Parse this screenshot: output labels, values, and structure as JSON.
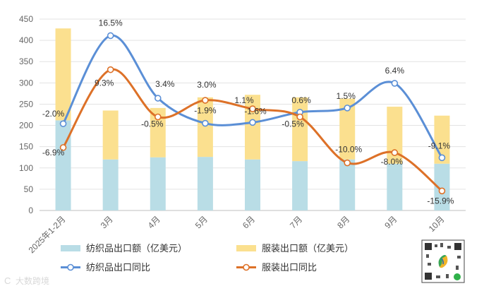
{
  "chart_data": {
    "type": "bar",
    "categories": [
      "2025年1-2月",
      "3月",
      "4月",
      "5月",
      "6月",
      "7月",
      "8月",
      "9月",
      "10月"
    ],
    "ylim": [
      0,
      450
    ],
    "yticks": [
      "0",
      "50",
      "100",
      "150",
      "200",
      "250",
      "300",
      "350",
      "400",
      "450"
    ],
    "grid": true,
    "legend_position": "bottom",
    "series": [
      {
        "name": "纺织品出口额（亿美元）",
        "kind": "stacked-bar-bottom",
        "color": "#b9dde6",
        "values": [
          212,
          120,
          125,
          126,
          120,
          116,
          120,
          110,
          110
        ]
      },
      {
        "name": "服装出口额（亿美元）",
        "kind": "stacked-bar-top",
        "color": "#fbe08f",
        "values": [
          216,
          115,
          116,
          140,
          152,
          150,
          143,
          134,
          113
        ]
      },
      {
        "name": "纺织品出口同比",
        "kind": "line",
        "color": "#5b8fd6",
        "plotted_positions": [
          204,
          411,
          264,
          205,
          207,
          231,
          241,
          299,
          124
        ],
        "labels": [
          "-2.0%",
          "16.5%",
          "3.4%",
          "-1.9%",
          "-1.6%",
          "0.6%",
          "1.5%",
          "6.4%",
          "-9.1%"
        ]
      },
      {
        "name": "服装出口同比",
        "kind": "line",
        "color": "#dd7128",
        "plotted_positions": [
          148,
          331,
          220,
          259,
          239,
          220,
          112,
          136,
          46
        ],
        "labels": [
          "-6.9%",
          "9.3%",
          "-0.5%",
          "3.0%",
          "1.1%",
          "-0.5%",
          "-10.0%",
          "-8.0%",
          "-15.9%"
        ]
      }
    ],
    "legend": [
      {
        "label": "纺织品出口额（亿美元）",
        "shape": "bar",
        "color": "#b9dde6"
      },
      {
        "label": "服装出口额（亿美元）",
        "shape": "bar",
        "color": "#fbe08f"
      },
      {
        "label": "纺织品出口同比",
        "shape": "line",
        "color": "#5b8fd6"
      },
      {
        "label": "服装出口同比",
        "shape": "line",
        "color": "#dd7128"
      }
    ]
  },
  "watermark": {
    "text": "大数跨境",
    "logo_text": "C"
  }
}
